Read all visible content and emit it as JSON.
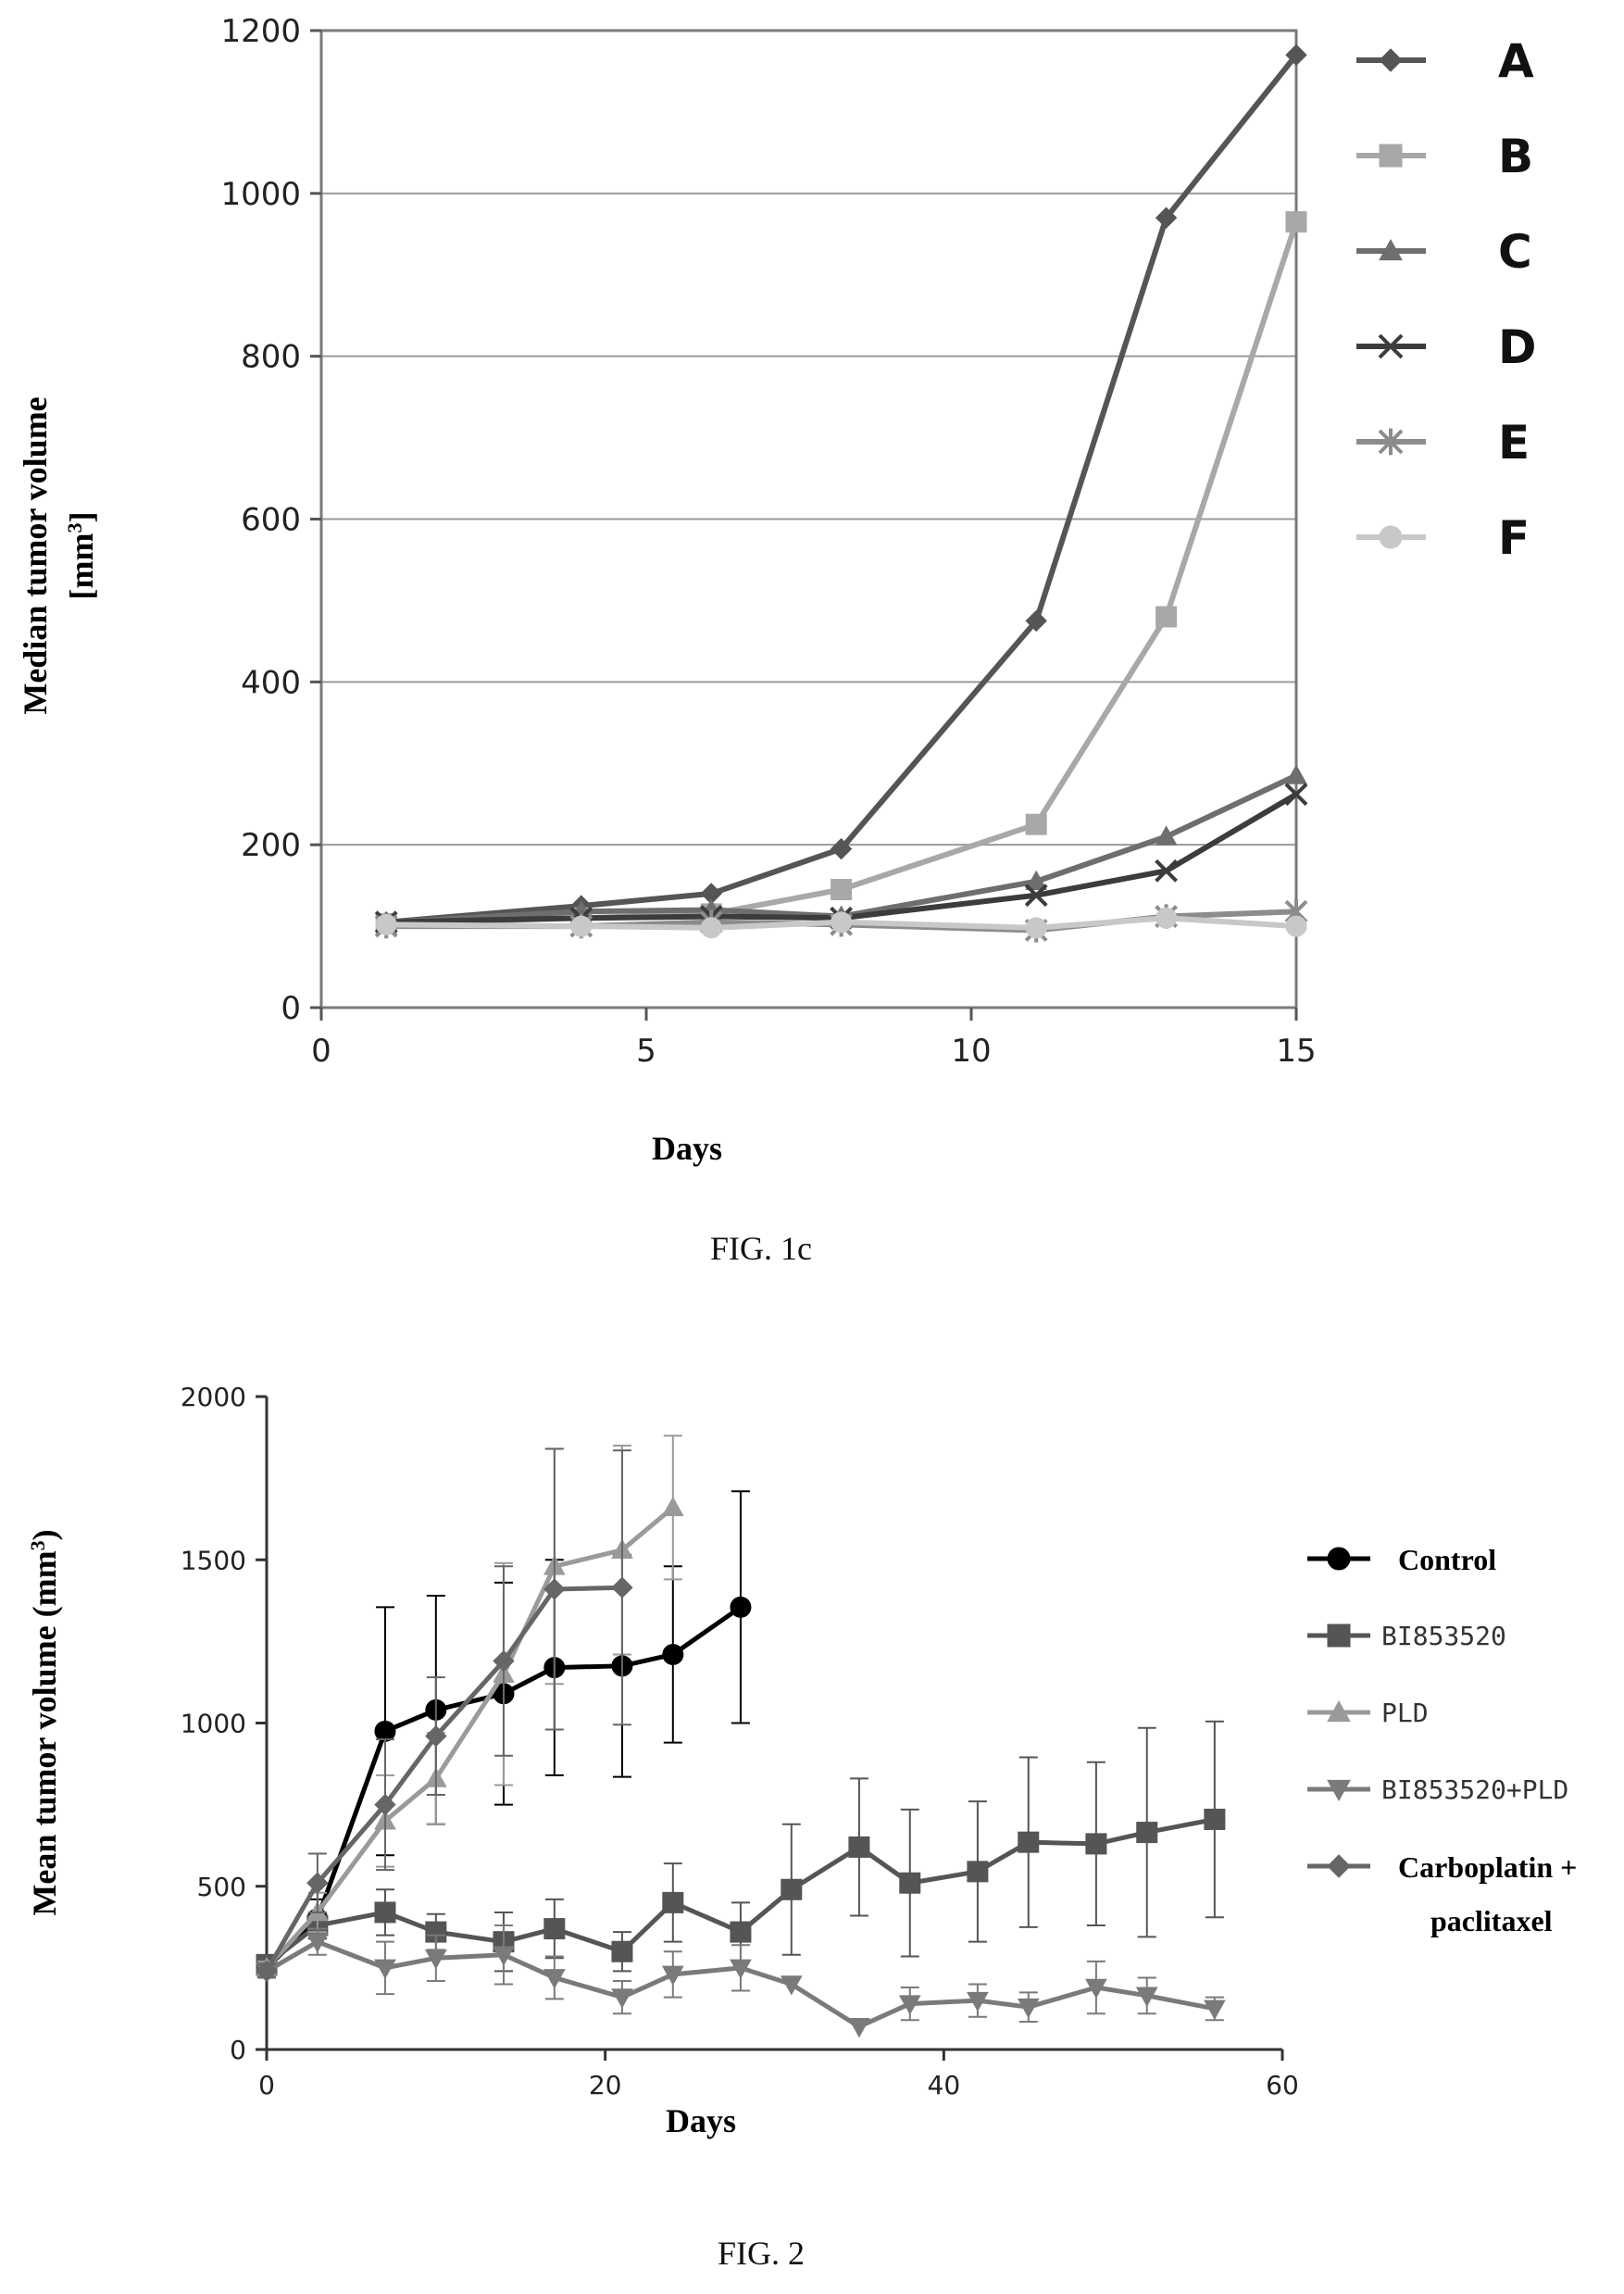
{
  "chart_data": [
    {
      "type": "line",
      "xlabel": "Days",
      "ylabel": "Median tumor volume",
      "ylabel_unit": "[mm",
      "ylabel_sup": "3",
      "ylabel_close": "]",
      "caption": "FIG. 1c",
      "xlim": [
        0,
        15
      ],
      "ylim": [
        0,
        1200
      ],
      "xticks": [
        0,
        5,
        10,
        15
      ],
      "yticks": [
        0,
        200,
        400,
        600,
        800,
        1000,
        1200
      ],
      "grid": "horizontal",
      "legend_position": "right",
      "series": [
        {
          "name": "A",
          "marker": "diamond",
          "color": "#555555",
          "x": [
            1,
            4,
            6,
            8,
            11,
            13,
            15
          ],
          "y": [
            105,
            125,
            140,
            195,
            475,
            970,
            1170
          ]
        },
        {
          "name": "B",
          "marker": "square",
          "color": "#a8a8a8",
          "x": [
            1,
            4,
            6,
            8,
            11,
            13,
            15
          ],
          "y": [
            103,
            110,
            115,
            145,
            225,
            480,
            965
          ]
        },
        {
          "name": "C",
          "marker": "triangle",
          "color": "#6e6e6e",
          "x": [
            1,
            4,
            6,
            8,
            11,
            13,
            15
          ],
          "y": [
            105,
            118,
            120,
            112,
            155,
            210,
            285
          ]
        },
        {
          "name": "D",
          "marker": "x",
          "color": "#3c3c3c",
          "x": [
            1,
            4,
            6,
            8,
            11,
            13,
            15
          ],
          "y": [
            105,
            110,
            112,
            110,
            138,
            168,
            262
          ]
        },
        {
          "name": "E",
          "marker": "star",
          "color": "#8c8c8c",
          "x": [
            1,
            4,
            6,
            8,
            11,
            13,
            15
          ],
          "y": [
            100,
            100,
            105,
            102,
            95,
            112,
            118
          ]
        },
        {
          "name": "F",
          "marker": "circle",
          "color": "#c8c8c8",
          "x": [
            1,
            4,
            6,
            8,
            11,
            13,
            15
          ],
          "y": [
            102,
            100,
            98,
            105,
            98,
            110,
            100
          ]
        }
      ]
    },
    {
      "type": "line",
      "xlabel": "Days",
      "ylabel": "Mean tumor volume (mm",
      "ylabel_sup": "3",
      "ylabel_close": ")",
      "caption": "FIG. 2",
      "xlim": [
        0,
        60
      ],
      "ylim": [
        0,
        2000
      ],
      "xticks": [
        0,
        20,
        40,
        60
      ],
      "yticks": [
        0,
        500,
        1000,
        1500,
        2000
      ],
      "grid": "none",
      "legend_position": "right",
      "series": [
        {
          "name": "Control",
          "marker": "circle",
          "color": "#000000",
          "label_style": "bold",
          "x": [
            0,
            3,
            7,
            10,
            14,
            17,
            21,
            24,
            28
          ],
          "y": [
            250,
            400,
            975,
            1040,
            1090,
            1170,
            1175,
            1210,
            1355
          ],
          "err": [
            20,
            60,
            380,
            350,
            340,
            330,
            340,
            270,
            355
          ]
        },
        {
          "name": "BI853520",
          "marker": "square",
          "color": "#555555",
          "label_style": "mono",
          "x": [
            0,
            3,
            7,
            10,
            14,
            17,
            21,
            24,
            28,
            31,
            35,
            38,
            42,
            45,
            49,
            52,
            56
          ],
          "y": [
            260,
            380,
            420,
            360,
            330,
            370,
            300,
            450,
            360,
            490,
            620,
            510,
            545,
            635,
            630,
            665,
            705
          ],
          "err": [
            20,
            40,
            70,
            55,
            90,
            90,
            60,
            120,
            90,
            200,
            210,
            225,
            215,
            260,
            250,
            320,
            300
          ]
        },
        {
          "name": "PLD",
          "marker": "triangle",
          "color": "#9a9a9a",
          "label_style": "mono",
          "x": [
            0,
            3,
            7,
            10,
            14,
            17,
            21,
            24
          ],
          "y": [
            250,
            420,
            700,
            830,
            1150,
            1480,
            1530,
            1660
          ],
          "err": [
            20,
            60,
            140,
            140,
            340,
            360,
            320,
            220
          ]
        },
        {
          "name": "BI853520+PLD",
          "marker": "triangle-down",
          "color": "#7a7a7a",
          "label_style": "mono",
          "x": [
            0,
            3,
            7,
            10,
            14,
            17,
            21,
            24,
            28,
            31,
            35,
            38,
            42,
            45,
            49,
            52,
            56
          ],
          "y": [
            240,
            330,
            250,
            280,
            290,
            220,
            160,
            230,
            250,
            200,
            70,
            140,
            150,
            130,
            190,
            165,
            125
          ],
          "err": [
            15,
            40,
            80,
            70,
            90,
            65,
            50,
            70,
            70,
            0,
            0,
            50,
            50,
            45,
            80,
            55,
            35
          ]
        },
        {
          "name": "Carboplatin +",
          "name_line2": "paclitaxel",
          "marker": "diamond",
          "color": "#666666",
          "label_style": "bold",
          "x": [
            0,
            3,
            7,
            10,
            14,
            17,
            21
          ],
          "y": [
            240,
            510,
            750,
            960,
            1190,
            1410,
            1415
          ],
          "err": [
            20,
            90,
            200,
            180,
            290,
            430,
            420
          ]
        }
      ]
    }
  ]
}
